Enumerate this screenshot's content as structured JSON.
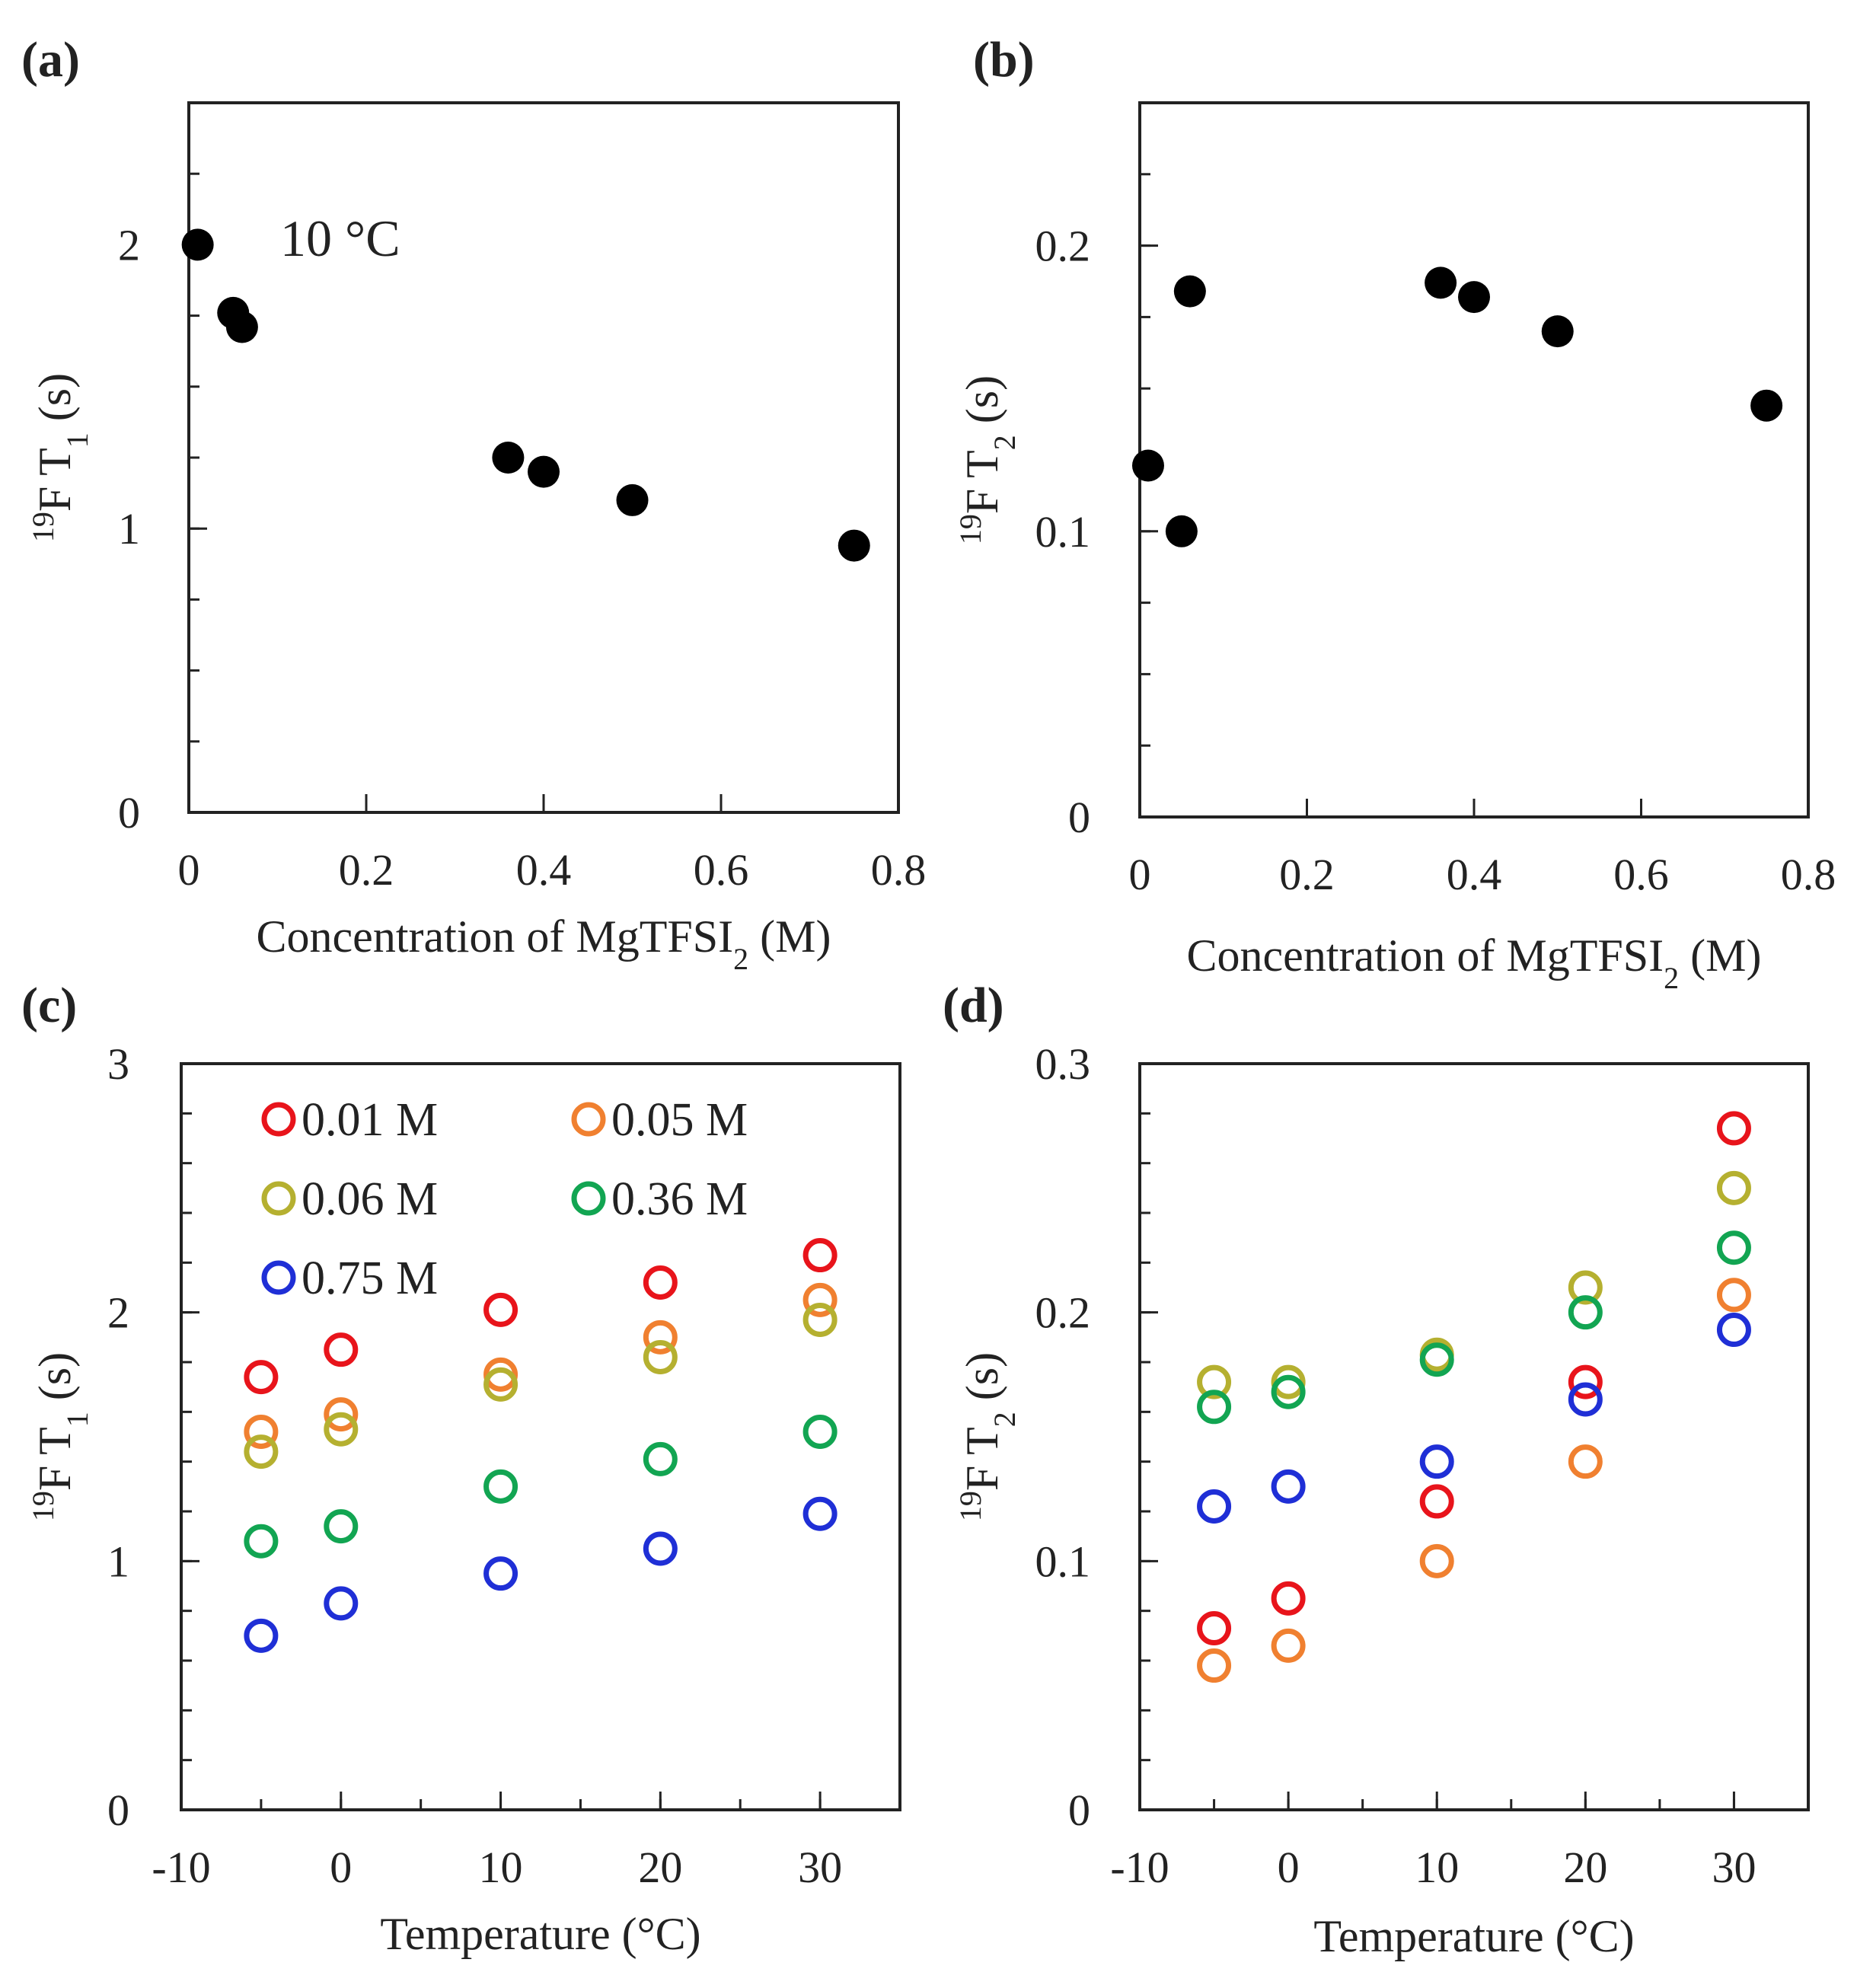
{
  "chart_data": [
    {
      "panel": "(a)",
      "type": "scatter",
      "xlabel": "Concentration of MgTFSI",
      "xlabel_sub": "2",
      "xlabel_tail": " (M)",
      "ylabel_sup": "19",
      "ylabel": "F T",
      "ylabel_sub": "1",
      "ylabel_tail": " (s)",
      "xlim": [
        0,
        0.8
      ],
      "ylim": [
        0,
        2.5
      ],
      "xticks": [
        0,
        0.2,
        0.4,
        0.6,
        0.8
      ],
      "xtick_labels": [
        "0",
        "0.2",
        "0.4",
        "0.6",
        "0.8"
      ],
      "yticks": [
        0,
        1,
        2
      ],
      "ytick_labels": [
        "0",
        "1",
        "2"
      ],
      "yminor": 0.25,
      "annotation": "10 °C",
      "series": [
        {
          "color": "#000000",
          "filled": true,
          "x": [
            0.01,
            0.05,
            0.06,
            0.36,
            0.4,
            0.5,
            0.75
          ],
          "y": [
            2.0,
            1.76,
            1.71,
            1.25,
            1.2,
            1.1,
            0.94
          ]
        }
      ]
    },
    {
      "panel": "(b)",
      "type": "scatter",
      "xlabel": "Concentration of MgTFSI",
      "xlabel_sub": "2",
      "xlabel_tail": " (M)",
      "ylabel_sup": "19",
      "ylabel": "F T",
      "ylabel_sub": "2",
      "ylabel_tail": " (s)",
      "xlim": [
        0,
        0.8
      ],
      "ylim": [
        0,
        0.25
      ],
      "xticks": [
        0,
        0.2,
        0.4,
        0.6,
        0.8
      ],
      "xtick_labels": [
        "0",
        "0.2",
        "0.4",
        "0.6",
        "0.8"
      ],
      "yticks": [
        0,
        0.1,
        0.2
      ],
      "ytick_labels": [
        "0",
        "0.1",
        "0.2"
      ],
      "yminor": 0.025,
      "series": [
        {
          "color": "#000000",
          "filled": true,
          "x": [
            0.01,
            0.05,
            0.06,
            0.36,
            0.4,
            0.5,
            0.75
          ],
          "y": [
            0.123,
            0.1,
            0.184,
            0.187,
            0.182,
            0.17,
            0.144
          ]
        }
      ]
    },
    {
      "panel": "(c)",
      "type": "scatter",
      "xlabel": "Temperature (°C)",
      "ylabel_sup": "19",
      "ylabel": "F T",
      "ylabel_sub": "1",
      "ylabel_tail": " (s)",
      "xlim": [
        -10,
        35
      ],
      "ylim": [
        0,
        3
      ],
      "xticks": [
        -10,
        0,
        10,
        20,
        30
      ],
      "xtick_labels": [
        "-10",
        "0",
        "10",
        "20",
        "30"
      ],
      "yticks": [
        0,
        1,
        2,
        3
      ],
      "ytick_labels": [
        "0",
        "1",
        "2",
        "3"
      ],
      "yminor": 0.2,
      "xminor": 5,
      "legend_position": "top-left",
      "series": [
        {
          "name": "0.01 M",
          "color": "#e8141b",
          "filled": false,
          "x": [
            -5,
            0,
            10,
            20,
            30
          ],
          "y": [
            1.74,
            1.85,
            2.01,
            2.12,
            2.23
          ]
        },
        {
          "name": "0.05 M",
          "color": "#f08030",
          "filled": false,
          "x": [
            -5,
            0,
            10,
            20,
            30
          ],
          "y": [
            1.52,
            1.59,
            1.75,
            1.9,
            2.05
          ]
        },
        {
          "name": "0.06 M",
          "color": "#b5b030",
          "filled": false,
          "x": [
            -5,
            0,
            10,
            20,
            30
          ],
          "y": [
            1.44,
            1.53,
            1.71,
            1.82,
            1.97
          ]
        },
        {
          "name": "0.36 M",
          "color": "#12a552",
          "filled": false,
          "x": [
            -5,
            0,
            10,
            20,
            30
          ],
          "y": [
            1.08,
            1.14,
            1.3,
            1.41,
            1.52
          ]
        },
        {
          "name": "0.75 M",
          "color": "#1f2fd6",
          "filled": false,
          "x": [
            -5,
            0,
            10,
            20,
            30
          ],
          "y": [
            0.7,
            0.83,
            0.95,
            1.05,
            1.19
          ]
        }
      ]
    },
    {
      "panel": "(d)",
      "type": "scatter",
      "xlabel": "Temperature (°C)",
      "ylabel_sup": "19",
      "ylabel": "F T",
      "ylabel_sub": "2",
      "ylabel_tail": " (s)",
      "xlim": [
        -10,
        35
      ],
      "ylim": [
        0,
        0.3
      ],
      "xticks": [
        -10,
        0,
        10,
        20,
        30
      ],
      "xtick_labels": [
        "-10",
        "0",
        "10",
        "20",
        "30"
      ],
      "yticks": [
        0,
        0.1,
        0.2,
        0.3
      ],
      "ytick_labels": [
        "0",
        "0.1",
        "0.2",
        "0.3"
      ],
      "yminor": 0.02,
      "xminor": 5,
      "series": [
        {
          "color": "#e8141b",
          "filled": false,
          "x": [
            -5,
            0,
            10,
            20,
            30
          ],
          "y": [
            0.073,
            0.085,
            0.124,
            0.172,
            0.274
          ]
        },
        {
          "color": "#f08030",
          "filled": false,
          "x": [
            -5,
            0,
            10,
            20,
            30
          ],
          "y": [
            0.058,
            0.066,
            0.1,
            0.14,
            0.207
          ]
        },
        {
          "color": "#b5b030",
          "filled": false,
          "x": [
            -5,
            0,
            10,
            20,
            30
          ],
          "y": [
            0.172,
            0.172,
            0.183,
            0.21,
            0.25
          ]
        },
        {
          "color": "#12a552",
          "filled": false,
          "x": [
            -5,
            0,
            10,
            20,
            30
          ],
          "y": [
            0.162,
            0.168,
            0.181,
            0.2,
            0.226
          ]
        },
        {
          "color": "#1f2fd6",
          "filled": false,
          "x": [
            -5,
            0,
            10,
            20,
            30
          ],
          "y": [
            0.122,
            0.13,
            0.14,
            0.165,
            0.193
          ]
        }
      ]
    }
  ]
}
